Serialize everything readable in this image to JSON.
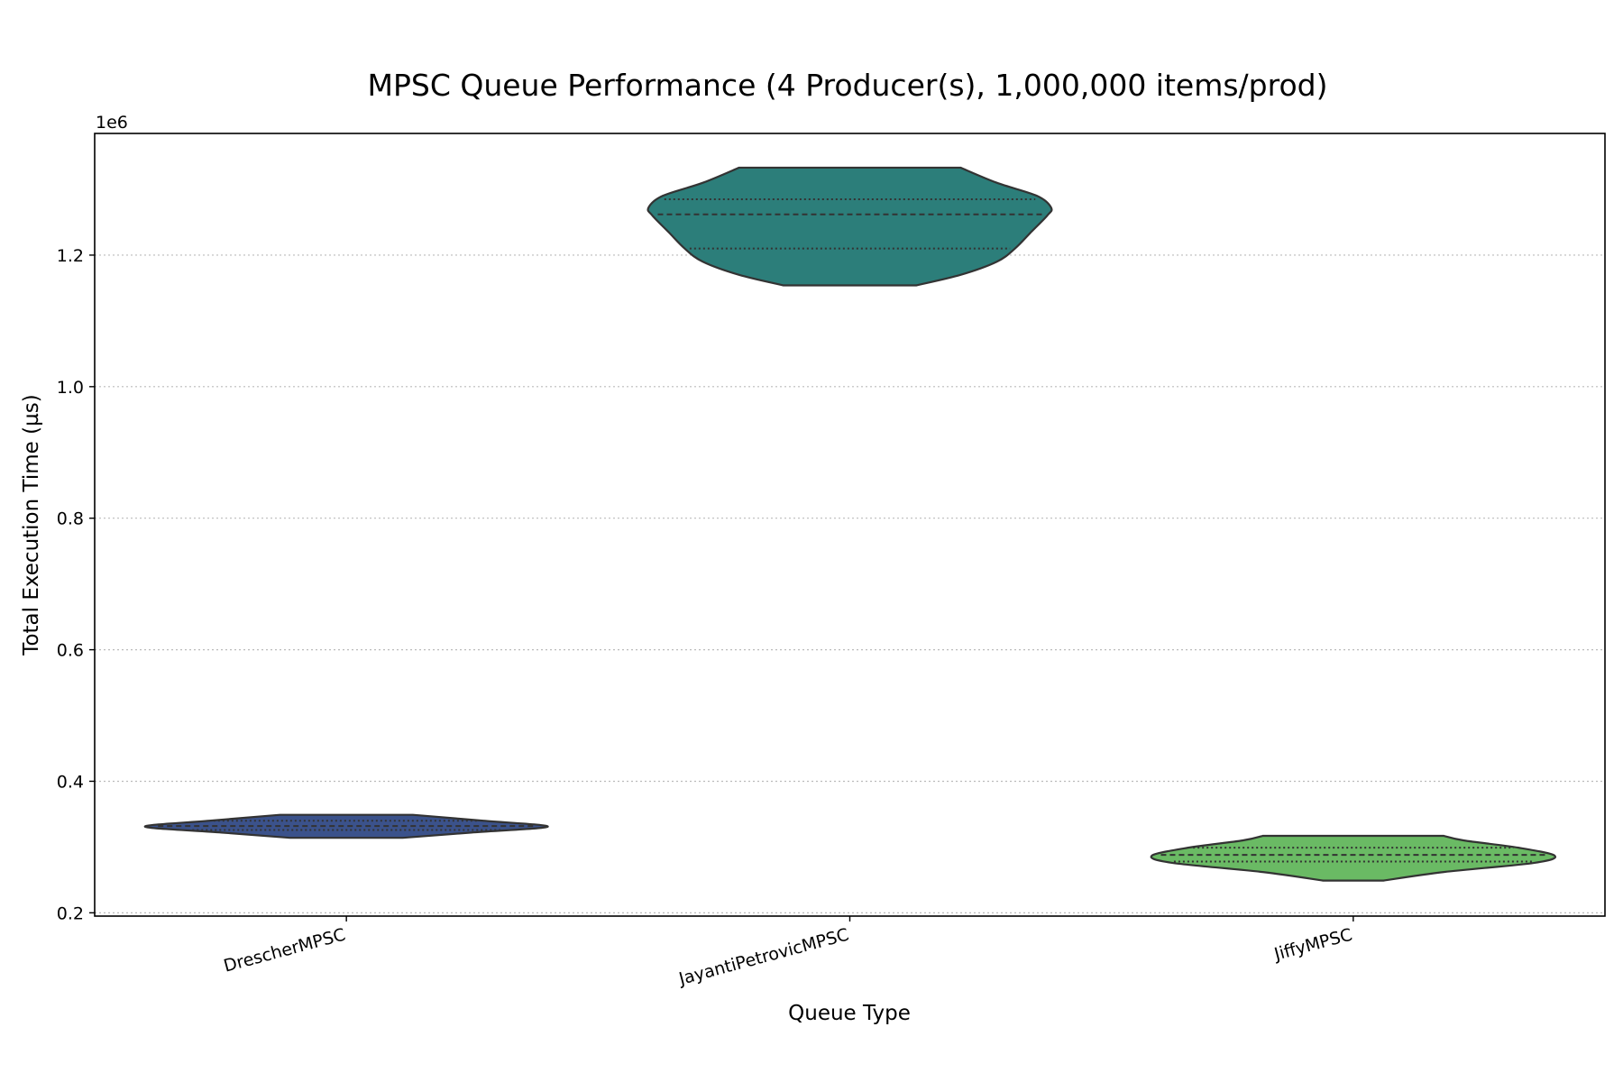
{
  "chart_data": {
    "type": "violin",
    "title": "MPSC Queue Performance (4 Producer(s), 1,000,000 items/prod)",
    "xlabel": "Queue Type",
    "ylabel": "Total Execution Time (µs)",
    "y_offset_label": "1e6",
    "y_scale_factor": 1000000,
    "ylim": [
      0.195,
      1.385
    ],
    "yticks": [
      0.2,
      0.4,
      0.6,
      0.8,
      1.0,
      1.2
    ],
    "ytick_labels": [
      "0.2",
      "0.4",
      "0.6",
      "0.8",
      "1.0",
      "1.2"
    ],
    "grid": "y-dotted",
    "categories": [
      "DrescherMPSC",
      "JayantiPetrovicMPSC",
      "JiffyMPSC"
    ],
    "series": [
      {
        "category": "DrescherMPSC",
        "color": "#3b528b",
        "min": 0.314,
        "max": 0.349,
        "q1": 0.326,
        "median": 0.332,
        "q3": 0.34,
        "profile": [
          [
            0.314,
            0.28
          ],
          [
            0.322,
            0.62
          ],
          [
            0.331,
            1.0
          ],
          [
            0.34,
            0.68
          ],
          [
            0.349,
            0.33
          ]
        ]
      },
      {
        "category": "JayantiPetrovicMPSC",
        "color": "#2c7e7a",
        "min": 1.154,
        "max": 1.333,
        "q1": 1.21,
        "median": 1.262,
        "q3": 1.285,
        "profile": [
          [
            1.154,
            0.33
          ],
          [
            1.17,
            0.55
          ],
          [
            1.19,
            0.73
          ],
          [
            1.21,
            0.82
          ],
          [
            1.235,
            0.9
          ],
          [
            1.26,
            0.98
          ],
          [
            1.272,
            1.0
          ],
          [
            1.29,
            0.93
          ],
          [
            1.31,
            0.73
          ],
          [
            1.333,
            0.55
          ]
        ]
      },
      {
        "category": "JiffyMPSC",
        "color": "#6aba64",
        "min": 0.249,
        "max": 0.317,
        "q1": 0.278,
        "median": 0.288,
        "q3": 0.299,
        "profile": [
          [
            0.249,
            0.15
          ],
          [
            0.262,
            0.45
          ],
          [
            0.276,
            0.9
          ],
          [
            0.287,
            1.0
          ],
          [
            0.299,
            0.82
          ],
          [
            0.31,
            0.55
          ],
          [
            0.317,
            0.45
          ]
        ]
      }
    ]
  }
}
